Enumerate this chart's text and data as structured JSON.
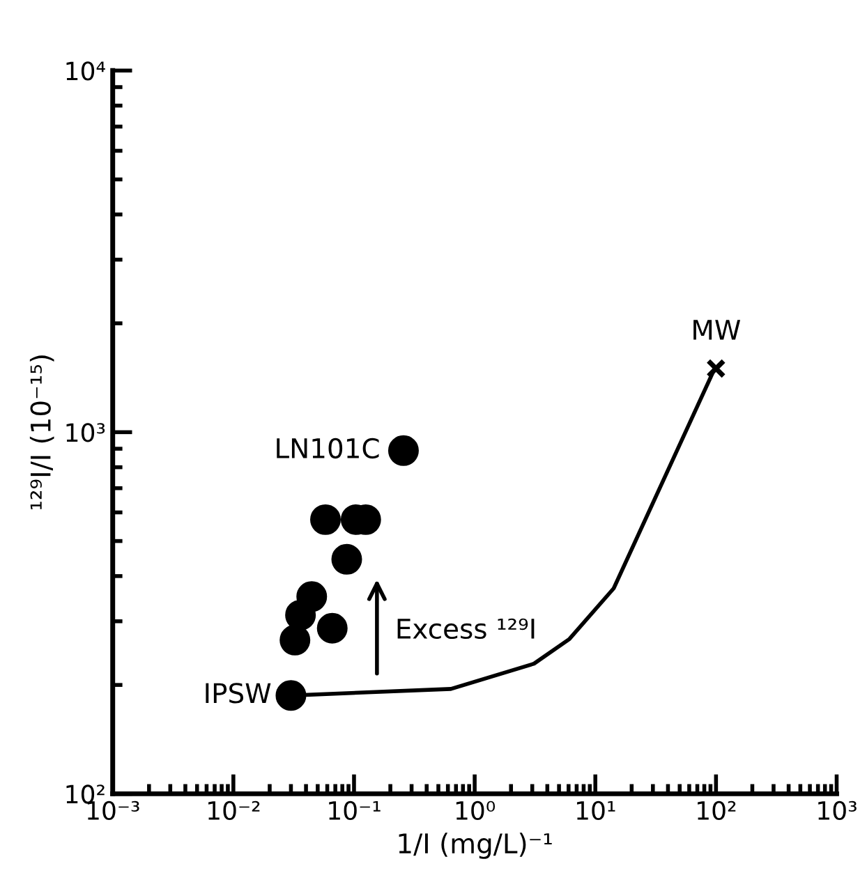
{
  "chart_data": {
    "type": "scatter",
    "xlabel": "1/I (mg/L)⁻¹",
    "ylabel": "¹²⁹I/I (10⁻¹⁵)",
    "log": "xy",
    "grid": false,
    "xlim": [
      0.001,
      1000
    ],
    "ylim": [
      100,
      10000
    ],
    "xticks": [
      {
        "value": 0.001,
        "label": "10⁻³"
      },
      {
        "value": 0.01,
        "label": "10⁻²"
      },
      {
        "value": 0.1,
        "label": "10⁻¹"
      },
      {
        "value": 1,
        "label": "10⁰"
      },
      {
        "value": 10,
        "label": "10¹"
      },
      {
        "value": 100,
        "label": "10²"
      },
      {
        "value": 1000,
        "label": "10³"
      }
    ],
    "yticks": [
      {
        "value": 100,
        "label": "10²"
      },
      {
        "value": 1000,
        "label": "10³"
      },
      {
        "value": 10000,
        "label": "10⁴"
      }
    ],
    "series": [
      {
        "type": "line",
        "color": "#000000",
        "marker": "none",
        "line_style": "solid",
        "x": [
          0.03,
          0.635,
          3.1,
          6.1,
          14.2,
          98.6
        ],
        "values": [
          187,
          195,
          229,
          268,
          370,
          1512
        ]
      },
      {
        "color": "#000000",
        "marker": "circle",
        "x": [
          0.03,
          0.257,
          0.058,
          0.104,
          0.125,
          0.087,
          0.0446,
          0.036,
          0.0324,
          0.066
        ],
        "values": [
          187,
          889,
          573,
          573,
          573,
          445,
          351,
          312,
          266,
          287
        ]
      },
      {
        "color": "#000000",
        "marker": "cross",
        "x": [
          100
        ],
        "values": [
          1500
        ]
      }
    ],
    "annotations": [
      {
        "text": "IPSW",
        "x": 0.03,
        "y": 187
      },
      {
        "text": "LN101C",
        "x": 0.257,
        "y": 889
      },
      {
        "text": "MW",
        "x": 100,
        "y": 1500
      },
      "Excess ¹²⁹I"
    ]
  }
}
